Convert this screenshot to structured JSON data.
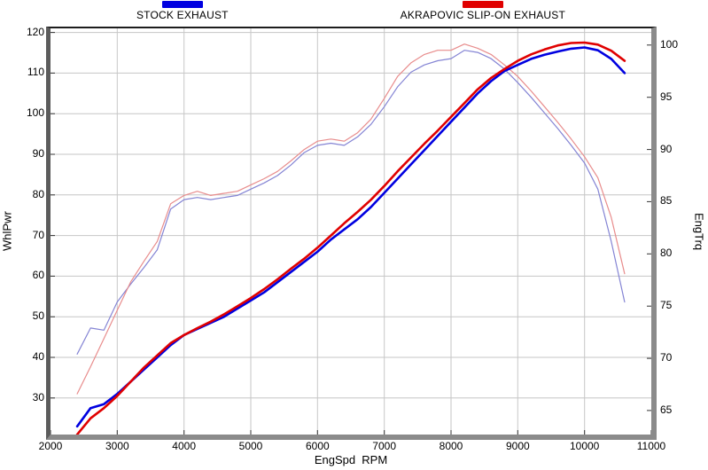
{
  "legend": [
    {
      "label": "STOCK EXHAUST",
      "color": "#0000e0"
    },
    {
      "label": "AKRAPOVIC SLIP-ON EXHAUST",
      "color": "#e00000"
    }
  ],
  "chart_data": {
    "type": "line",
    "title": "",
    "x_label": "EngSpd  RPM",
    "y_left_label": "WhlPwr",
    "y_right_label": "EngTrq",
    "grid": true,
    "legend_position": "top",
    "axes": {
      "x": {
        "min": 2000,
        "max": 11000,
        "ticks": [
          2000,
          3000,
          4000,
          5000,
          6000,
          7000,
          8000,
          9000,
          10000,
          11000
        ]
      },
      "y_left": {
        "min": 21,
        "max": 121,
        "ticks": [
          30,
          40,
          50,
          60,
          70,
          80,
          90,
          100,
          110,
          120
        ]
      },
      "y_right": {
        "min": 62.7,
        "max": 101.6,
        "ticks": [
          65,
          70,
          75,
          80,
          85,
          90,
          95,
          100
        ]
      }
    },
    "x": [
      2400,
      2600,
      2800,
      3000,
      3200,
      3400,
      3600,
      3800,
      4000,
      4200,
      4400,
      4600,
      4800,
      5000,
      5200,
      5400,
      5600,
      5800,
      6000,
      6200,
      6400,
      6600,
      6800,
      7000,
      7200,
      7400,
      7600,
      7800,
      8000,
      8200,
      8400,
      8600,
      8800,
      9000,
      9200,
      9400,
      9600,
      9800,
      10000,
      10200,
      10400,
      10600
    ],
    "series": [
      {
        "name": "STOCK EXHAUST EngTrq",
        "axis": "right",
        "color": "#8484d4",
        "width": 1.2,
        "values": [
          70.4,
          72.9,
          72.7,
          75.4,
          77.1,
          78.7,
          80.4,
          84.3,
          85.2,
          85.4,
          85.2,
          85.4,
          85.6,
          86.2,
          86.8,
          87.5,
          88.5,
          89.7,
          90.4,
          90.6,
          90.4,
          91.2,
          92.4,
          94.1,
          96.0,
          97.4,
          98.1,
          98.5,
          98.7,
          99.5,
          99.3,
          98.7,
          97.7,
          96.4,
          95.0,
          93.5,
          92.0,
          90.4,
          88.7,
          86.2,
          81.2,
          75.4
        ]
      },
      {
        "name": "AKRAPOVIC SLIP-ON EXHAUST EngTrq",
        "axis": "right",
        "color": "#e88c8c",
        "width": 1.2,
        "values": [
          66.6,
          69.2,
          71.9,
          74.6,
          77.3,
          79.3,
          81.2,
          84.8,
          85.6,
          86.0,
          85.6,
          85.8,
          86.0,
          86.6,
          87.2,
          87.9,
          88.9,
          90.0,
          90.8,
          91.0,
          90.8,
          91.6,
          92.9,
          94.9,
          97.0,
          98.3,
          99.1,
          99.5,
          99.5,
          100.1,
          99.7,
          99.1,
          98.1,
          97.0,
          95.6,
          94.1,
          92.6,
          91.0,
          89.3,
          87.3,
          83.5,
          78.1
        ]
      },
      {
        "name": "STOCK EXHAUST WhlPwr",
        "axis": "left",
        "color": "#0000e0",
        "width": 2.6,
        "values": [
          23,
          27.5,
          28.5,
          31,
          34,
          37,
          40,
          43,
          45.5,
          47,
          48.5,
          50,
          52,
          54,
          56,
          58.5,
          61,
          63.5,
          66,
          69,
          71.5,
          74,
          77,
          80.5,
          84,
          87.5,
          91,
          94.5,
          98,
          101.5,
          105,
          108,
          110.5,
          112,
          113.5,
          114.5,
          115.3,
          116,
          116.3,
          115.6,
          113.5,
          110
        ]
      },
      {
        "name": "AKRAPOVIC SLIP-ON EXHAUST WhlPwr",
        "axis": "left",
        "color": "#e00000",
        "width": 2.6,
        "values": [
          21,
          25,
          27.5,
          30.5,
          34,
          37.5,
          40.5,
          43.5,
          45.5,
          47.2,
          48.8,
          50.6,
          52.6,
          54.6,
          56.8,
          59.2,
          61.8,
          64.3,
          67,
          70,
          73,
          75.8,
          78.8,
          82.2,
          85.8,
          89.2,
          92.6,
          95.8,
          99.2,
          102.6,
          106,
          108.8,
          111,
          113,
          114.6,
          115.8,
          116.8,
          117.4,
          117.5,
          117,
          115.5,
          113
        ]
      }
    ]
  }
}
